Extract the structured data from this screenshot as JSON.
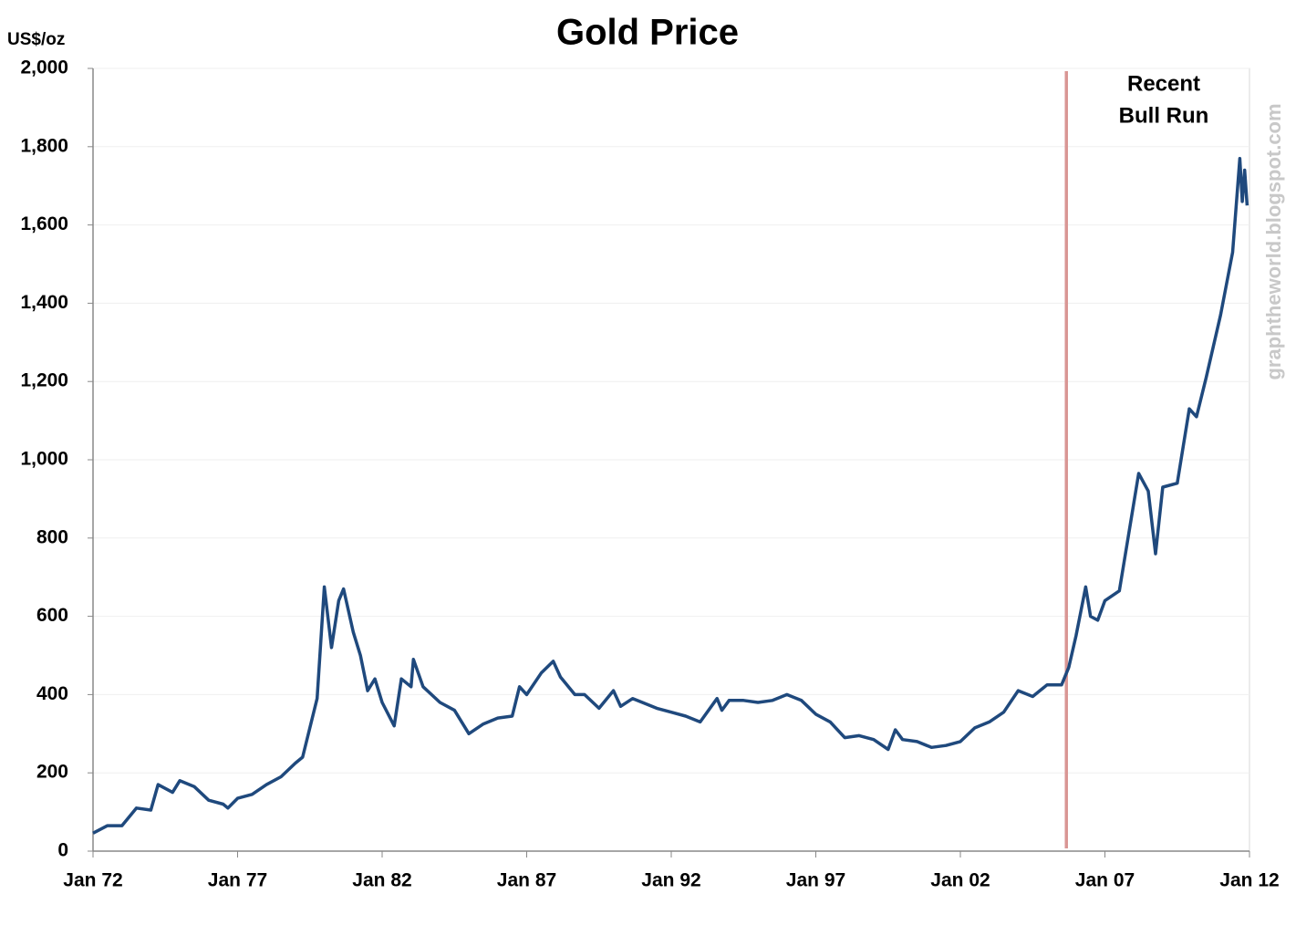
{
  "chart_data": {
    "type": "line",
    "title": "Gold Price",
    "y_label": "US$/oz",
    "watermark": "graphtheworld.blogspot.com",
    "xlim": [
      "1972-01",
      "2012-01"
    ],
    "xticks": [
      {
        "value": "1972-01",
        "label": "Jan 72"
      },
      {
        "value": "1977-01",
        "label": "Jan 77"
      },
      {
        "value": "1982-01",
        "label": "Jan 82"
      },
      {
        "value": "1987-01",
        "label": "Jan 87"
      },
      {
        "value": "1992-01",
        "label": "Jan 92"
      },
      {
        "value": "1997-01",
        "label": "Jan 97"
      },
      {
        "value": "2002-01",
        "label": "Jan 02"
      },
      {
        "value": "2007-01",
        "label": "Jan 07"
      },
      {
        "value": "2012-01",
        "label": "Jan 12"
      }
    ],
    "ylim": [
      0,
      2000
    ],
    "yticks": [
      0,
      200,
      400,
      600,
      800,
      {
        "value": 1000,
        "label": "1,000"
      },
      {
        "value": 1200,
        "label": "1,200"
      },
      {
        "value": 1400,
        "label": "1,400"
      },
      {
        "value": 1600,
        "label": "1,600"
      },
      {
        "value": 1800,
        "label": "1,800"
      },
      {
        "value": 2000,
        "label": "2,000"
      }
    ],
    "grid": true,
    "annotations": [
      {
        "x": "2005-09",
        "color": "#d99694",
        "text": [
          "Recent",
          "Bull Run"
        ]
      }
    ],
    "x": [
      "1972-01",
      "1972-07",
      "1973-01",
      "1973-07",
      "1974-01",
      "1974-04",
      "1974-10",
      "1975-01",
      "1975-07",
      "1976-01",
      "1976-07",
      "1976-09",
      "1977-01",
      "1977-07",
      "1978-01",
      "1978-07",
      "1979-01",
      "1979-04",
      "1979-10",
      "1980-01",
      "1980-04",
      "1980-07",
      "1980-09",
      "1981-01",
      "1981-04",
      "1981-07",
      "1981-10",
      "1982-01",
      "1982-06",
      "1982-09",
      "1983-01",
      "1983-02",
      "1983-06",
      "1984-01",
      "1984-07",
      "1985-01",
      "1985-07",
      "1986-01",
      "1986-07",
      "1986-10",
      "1987-01",
      "1987-07",
      "1987-12",
      "1988-03",
      "1988-09",
      "1989-01",
      "1989-07",
      "1990-01",
      "1990-04",
      "1990-09",
      "1991-01",
      "1991-07",
      "1992-01",
      "1992-07",
      "1993-01",
      "1993-08",
      "1993-10",
      "1994-01",
      "1994-07",
      "1995-01",
      "1995-07",
      "1996-01",
      "1996-07",
      "1997-01",
      "1997-07",
      "1998-01",
      "1998-07",
      "1999-01",
      "1999-07",
      "1999-10",
      "2000-01",
      "2000-07",
      "2001-01",
      "2001-07",
      "2002-01",
      "2002-07",
      "2003-01",
      "2003-07",
      "2004-01",
      "2004-07",
      "2005-01",
      "2005-07",
      "2005-10",
      "2006-01",
      "2006-05",
      "2006-07",
      "2006-10",
      "2007-01",
      "2007-07",
      "2008-01",
      "2008-03",
      "2008-07",
      "2008-10",
      "2009-01",
      "2009-07",
      "2009-12",
      "2010-03",
      "2010-07",
      "2011-01",
      "2011-06",
      "2011-09",
      "2011-10",
      "2011-11",
      "2011-12"
    ],
    "series": [
      {
        "name": "Gold Price",
        "color": "#1f497d",
        "values": [
          46,
          65,
          65,
          110,
          105,
          170,
          150,
          180,
          165,
          130,
          120,
          110,
          135,
          145,
          170,
          190,
          225,
          240,
          390,
          675,
          520,
          640,
          670,
          560,
          500,
          410,
          440,
          380,
          320,
          440,
          420,
          490,
          420,
          380,
          360,
          300,
          325,
          340,
          345,
          420,
          400,
          455,
          485,
          445,
          400,
          400,
          365,
          410,
          370,
          390,
          380,
          365,
          355,
          345,
          330,
          390,
          360,
          385,
          385,
          380,
          385,
          400,
          385,
          350,
          330,
          290,
          295,
          285,
          260,
          310,
          285,
          280,
          265,
          270,
          280,
          315,
          330,
          355,
          410,
          395,
          425,
          425,
          470,
          550,
          675,
          600,
          590,
          640,
          665,
          890,
          965,
          920,
          760,
          930,
          940,
          1130,
          1110,
          1210,
          1370,
          1530,
          1770,
          1660,
          1740,
          1650
        ]
      }
    ]
  }
}
